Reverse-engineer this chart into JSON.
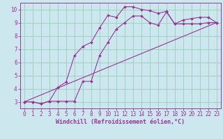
{
  "xlabel": "Windchill (Refroidissement éolien,°C)",
  "bg_color": "#cce8ee",
  "line_color": "#993399",
  "grid_color": "#99ccbb",
  "axis_color": "#993399",
  "xlim": [
    -0.5,
    23.5
  ],
  "ylim": [
    2.5,
    10.5
  ],
  "xticks": [
    0,
    1,
    2,
    3,
    4,
    5,
    6,
    7,
    8,
    9,
    10,
    11,
    12,
    13,
    14,
    15,
    16,
    17,
    18,
    19,
    20,
    21,
    22,
    23
  ],
  "yticks": [
    3,
    4,
    5,
    6,
    7,
    8,
    9,
    10
  ],
  "line1_x": [
    0,
    1,
    2,
    3,
    4,
    5,
    6,
    7,
    8,
    9,
    10,
    11,
    12,
    13,
    14,
    15,
    16,
    17,
    18,
    19,
    20,
    21,
    22,
    23
  ],
  "line1_y": [
    3.0,
    3.0,
    2.85,
    3.05,
    4.1,
    4.5,
    6.5,
    7.2,
    7.5,
    8.6,
    9.55,
    9.4,
    10.2,
    10.2,
    10.0,
    9.9,
    9.7,
    9.85,
    8.9,
    9.2,
    9.3,
    9.4,
    9.4,
    9.0
  ],
  "line2_x": [
    0,
    1,
    2,
    3,
    4,
    5,
    6,
    7,
    8,
    9,
    10,
    11,
    12,
    13,
    14,
    15,
    16,
    17,
    18,
    19,
    20,
    21,
    22,
    23
  ],
  "line2_y": [
    3.0,
    3.0,
    2.85,
    3.05,
    3.05,
    3.05,
    3.05,
    4.55,
    4.55,
    6.5,
    7.5,
    8.5,
    9.0,
    9.5,
    9.5,
    9.0,
    8.8,
    9.8,
    8.9,
    8.9,
    8.9,
    8.9,
    9.0,
    9.0
  ],
  "line3_x": [
    0,
    23
  ],
  "line3_y": [
    3.0,
    9.0
  ],
  "xlabel_fontsize": 6,
  "tick_fontsize": 5.5
}
